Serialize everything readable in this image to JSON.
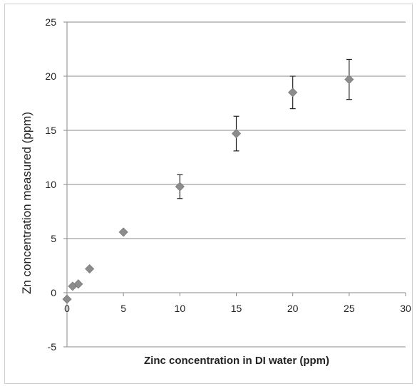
{
  "chart_data": {
    "type": "scatter",
    "title": "",
    "xlabel": "Zinc concentration in DI water (ppm)",
    "ylabel": "Zn concentration measured (ppm)",
    "xlim": [
      0,
      30
    ],
    "ylim": [
      -5,
      25
    ],
    "x_ticks": [
      0,
      5,
      10,
      15,
      20,
      25,
      30
    ],
    "y_ticks": [
      -5,
      0,
      5,
      10,
      15,
      20,
      25
    ],
    "grid": "horizontal",
    "marker": "diamond",
    "marker_color": "#8c8c8c",
    "points": [
      {
        "x": 0,
        "y": -0.6,
        "err": 0.3
      },
      {
        "x": 0.5,
        "y": 0.6,
        "err": 0.2
      },
      {
        "x": 1,
        "y": 0.8,
        "err": 0.2
      },
      {
        "x": 2,
        "y": 2.2,
        "err": 0.3
      },
      {
        "x": 5,
        "y": 5.6,
        "err": 0.3
      },
      {
        "x": 10,
        "y": 9.8,
        "err": 1.1
      },
      {
        "x": 15,
        "y": 14.7,
        "err": 1.6
      },
      {
        "x": 20,
        "y": 18.5,
        "err": 1.5
      },
      {
        "x": 25,
        "y": 19.7,
        "err": 1.85
      }
    ]
  }
}
